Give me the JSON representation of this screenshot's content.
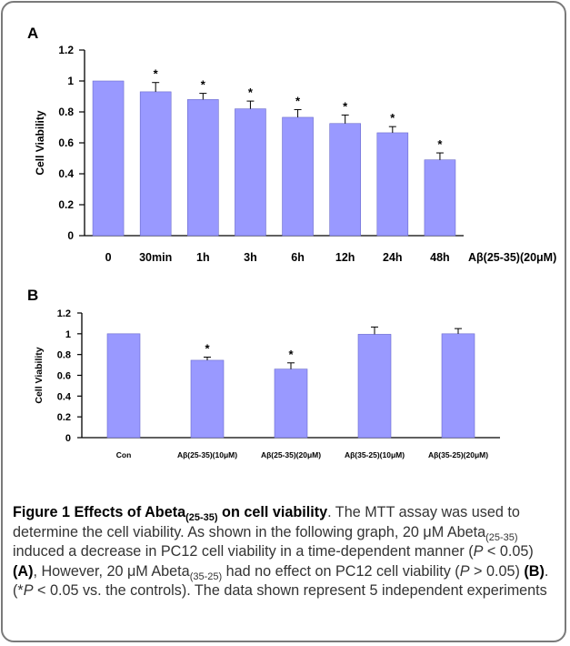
{
  "chart_data": [
    {
      "panel": "A",
      "type": "bar",
      "ylabel": "Cell Viability",
      "xlabel": "Aβ(25-35)(20μM)",
      "ylim": [
        0,
        1.2
      ],
      "yticks": [
        "0",
        "0.2",
        "0.4",
        "0.6",
        "0.8",
        "1",
        "1.2"
      ],
      "categories": [
        "0",
        "30min",
        "1h",
        "3h",
        "6h",
        "12h",
        "24h",
        "48h"
      ],
      "values": [
        1.0,
        0.93,
        0.88,
        0.82,
        0.765,
        0.725,
        0.665,
        0.49
      ],
      "errors": [
        0,
        0.06,
        0.04,
        0.05,
        0.05,
        0.055,
        0.04,
        0.045
      ],
      "significant": [
        false,
        true,
        true,
        true,
        true,
        true,
        true,
        true
      ],
      "star_label": "*",
      "bar_color": "#9999ff",
      "legend": "none"
    },
    {
      "panel": "B",
      "type": "bar",
      "ylabel": "Cell Viability",
      "xlabel": "",
      "ylim": [
        0,
        1.2
      ],
      "yticks": [
        "0",
        "0.2",
        "0.4",
        "0.6",
        "0.8",
        "1",
        "1.2"
      ],
      "categories": [
        "Con",
        "Aβ(25-35)(10μM)",
        "Aβ(25-35)(20μM)",
        "Aβ(35-25)(10μM)",
        "Aβ(35-25)(20μM)"
      ],
      "values": [
        1.0,
        0.745,
        0.66,
        0.995,
        1.0
      ],
      "errors": [
        0,
        0.03,
        0.06,
        0.07,
        0.05
      ],
      "significant": [
        false,
        true,
        true,
        false,
        false
      ],
      "star_label": "*",
      "bar_color": "#9999ff",
      "legend": "none"
    }
  ],
  "caption": {
    "title_pre": "Figure 1 Effects of Abeta",
    "title_sub": "(25-35)",
    "title_post": " on cell viability",
    "t1": ". The MTT assay was used to determine the cell viability. As shown in the following graph, 20 μM Abeta",
    "s1": "(25-35)",
    "t2": " induced a decrease in PC12 cell viability in a time-dependent manner (",
    "p1": "P",
    "t3": " < 0.05) ",
    "ref_a": "(A)",
    "t4": ", However, 20 μM Abeta",
    "s2": "(35-25)",
    "t5": " had no effect on PC12 cell viability (",
    "p2": "P",
    "t6": " > 0.05) ",
    "ref_b": "(B)",
    "t7": ". (*",
    "p3": "P",
    "t8": " < 0.05 vs. the controls). The data shown represent 5 independent experiments"
  }
}
